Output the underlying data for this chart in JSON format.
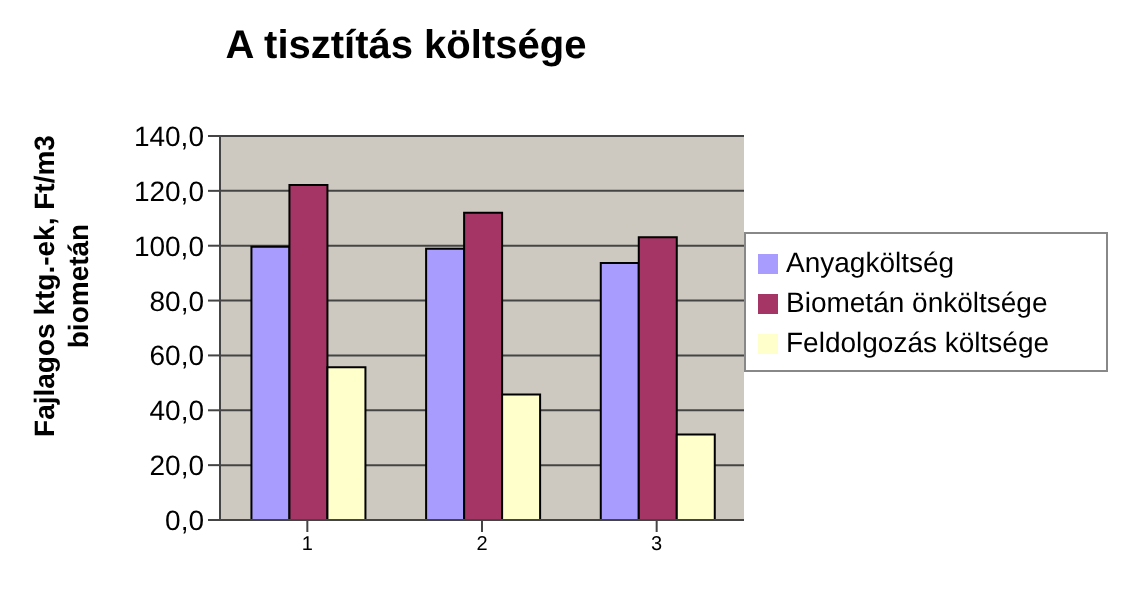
{
  "chart_data": {
    "type": "bar",
    "title": "A tisztítás költsége",
    "ylabel": "Fajlagos ktg.-ek, Ft/m3 biometán",
    "categories": [
      "1",
      "2",
      "3"
    ],
    "series": [
      {
        "name": "Anyagköltség",
        "color": "#a99cff",
        "values": [
          99.6,
          98.9,
          93.7
        ]
      },
      {
        "name": "Biometán önköltsége",
        "color": "#a53565",
        "values": [
          122.1,
          112.0,
          103.1
        ]
      },
      {
        "name": "Feldolgozás költsége",
        "color": "#ffffcc",
        "values": [
          55.7,
          45.8,
          31.2
        ]
      }
    ],
    "ylim": [
      0,
      140
    ],
    "yticks": [
      {
        "value": 0,
        "label": "0,0"
      },
      {
        "value": 20,
        "label": "20,0"
      },
      {
        "value": 40,
        "label": "40,0"
      },
      {
        "value": 60,
        "label": "60,0"
      },
      {
        "value": 80,
        "label": "80,0"
      },
      {
        "value": 100,
        "label": "100,0"
      },
      {
        "value": 120,
        "label": "120,0"
      },
      {
        "value": 140,
        "label": "140,0"
      }
    ],
    "grid": "y",
    "legend": "right"
  }
}
